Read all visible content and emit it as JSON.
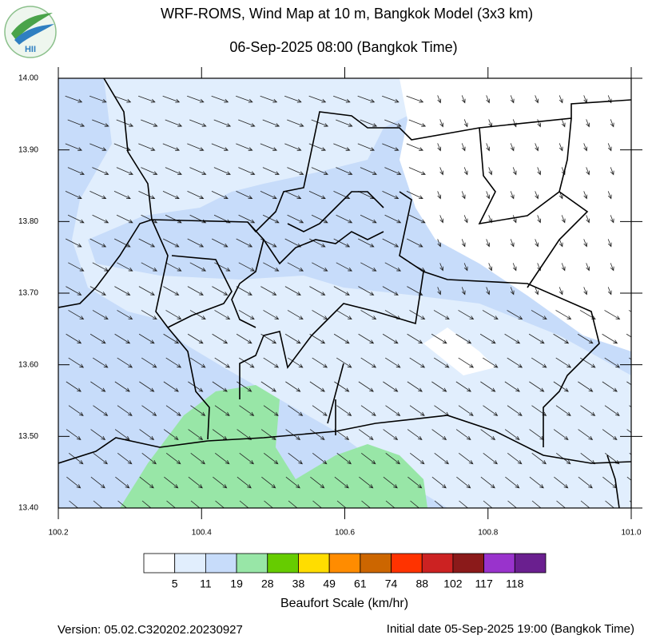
{
  "header": {
    "title": "WRF-ROMS, Wind Map at 10 m, Bangkok Model (3x3 km)",
    "subtitle": "06-Sep-2025 08:00 (Bangkok Time)",
    "logo_text": "HII"
  },
  "map": {
    "xlim": [
      100.2,
      101.0
    ],
    "ylim": [
      13.4,
      14.0
    ],
    "xticks": [
      {
        "value": 100.2,
        "label": "100.2"
      },
      {
        "value": 100.4,
        "label": "100.4"
      },
      {
        "value": 100.6,
        "label": "100.6"
      },
      {
        "value": 100.8,
        "label": "100.8"
      },
      {
        "value": 101.0,
        "label": "101.0"
      }
    ],
    "yticks": [
      {
        "value": 13.4,
        "label": "13.40"
      },
      {
        "value": 13.5,
        "label": "13.50"
      },
      {
        "value": 13.6,
        "label": "13.60"
      },
      {
        "value": 13.7,
        "label": "13.70"
      },
      {
        "value": 13.8,
        "label": "13.80"
      },
      {
        "value": 13.9,
        "label": "13.90"
      },
      {
        "value": 14.0,
        "label": "14.00"
      }
    ]
  },
  "legend": {
    "title": "Beaufort Scale (km/hr)",
    "colors": [
      "#ffffff",
      "#e1eefd",
      "#c7dcfa",
      "#98e6a7",
      "#66cc00",
      "#ffdd00",
      "#ff8c00",
      "#cc6600",
      "#ff3300",
      "#cc2222",
      "#8b1a1a",
      "#9933cc",
      "#6a1f8f"
    ],
    "labels": [
      5,
      11,
      19,
      28,
      38,
      49,
      61,
      74,
      88,
      102,
      117,
      118
    ]
  },
  "footer": {
    "version": "Version: 05.02.C320202.20230927",
    "initial_date": "Initial date 05-Sep-2025 19:00 (Bangkok Time)"
  }
}
